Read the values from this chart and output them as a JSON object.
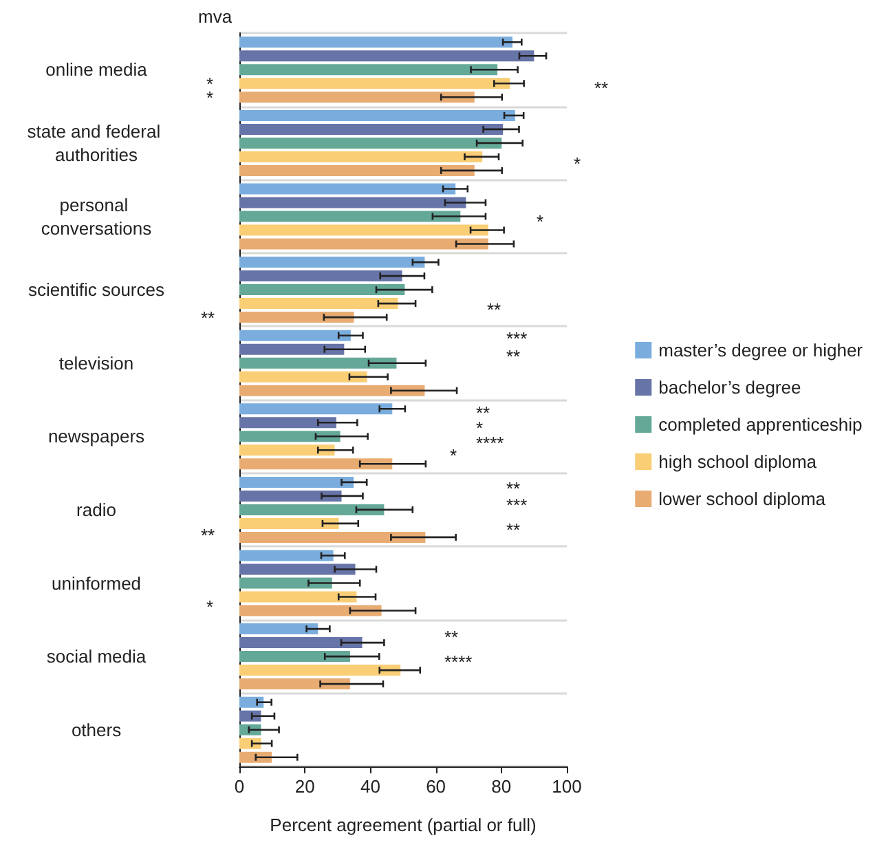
{
  "chart_data": {
    "type": "bar",
    "orientation": "horizontal",
    "xlabel": "Percent agreement (partial or full)",
    "categories": [
      "online media",
      "state and federal authorities",
      "personal conversations",
      "scientific sources",
      "television",
      "newspapers",
      "radio",
      "uninformed",
      "social media",
      "others"
    ],
    "series": [
      {
        "name": "master’s degree or higher",
        "color": "#7aadde",
        "values": [
          83.4,
          84.2,
          66,
          56.6,
          34,
          46.7,
          34.9,
          28.7,
          24,
          7.4
        ],
        "errors": [
          [
            80.5,
            86.2
          ],
          [
            80.9,
            86.8
          ],
          [
            62.2,
            69.7
          ],
          [
            52.9,
            60.8
          ],
          [
            30.3,
            37.7
          ],
          [
            42.8,
            50.6
          ],
          [
            31.2,
            38.9
          ],
          [
            25,
            32.2
          ],
          [
            20.5,
            27.6
          ],
          [
            5.4,
            9.8
          ]
        ]
      },
      {
        "name": "bachelor’s degree",
        "color": "#6674a8",
        "values": [
          90,
          80.5,
          69.2,
          49.7,
          32,
          29.6,
          31.2,
          35.4,
          37.5,
          6.6
        ],
        "errors": [
          [
            85.5,
            93.7
          ],
          [
            74.5,
            85.4
          ],
          [
            62.8,
            75.2
          ],
          [
            43,
            56.5
          ],
          [
            26,
            38.4
          ],
          [
            24,
            36
          ],
          [
            25.1,
            37.7
          ],
          [
            29.1,
            41.8
          ],
          [
            31.1,
            44.2
          ],
          [
            3.8,
            10.7
          ]
        ]
      },
      {
        "name": "completed apprenticeship",
        "color": "#64a898",
        "values": [
          78.8,
          80.1,
          67.5,
          50.5,
          48,
          30.8,
          44.2,
          28.3,
          33.8,
          6.6
        ],
        "errors": [
          [
            70.7,
            85
          ],
          [
            72.5,
            86.5
          ],
          [
            59,
            75.2
          ],
          [
            41.8,
            58.9
          ],
          [
            39.5,
            56.9
          ],
          [
            23.3,
            39.2
          ],
          [
            35.7,
            52.9
          ],
          [
            21.1,
            36.8
          ],
          [
            26.1,
            42.7
          ],
          [
            2.9,
            12.1
          ]
        ]
      },
      {
        "name": "high school diploma",
        "color": "#f9ce75",
        "values": [
          82.6,
          74.2,
          76,
          48.4,
          39,
          29.1,
          30.4,
          35.8,
          49.2,
          6.6
        ],
        "errors": [
          [
            77.8,
            86.9
          ],
          [
            68.8,
            79.2
          ],
          [
            70.6,
            80.8
          ],
          [
            42.4,
            53.8
          ],
          [
            33.6,
            45.3
          ],
          [
            24,
            34.7
          ],
          [
            25.4,
            36.3
          ],
          [
            30.3,
            41.6
          ],
          [
            42.8,
            55.2
          ],
          [
            3.8,
            9.9
          ]
        ]
      },
      {
        "name": "lower school diploma",
        "color": "#e8ac72",
        "values": [
          71.8,
          71.8,
          76,
          35,
          56.6,
          46.7,
          56.8,
          43.4,
          33.8,
          9.9
        ],
        "errors": [
          [
            61.6,
            80.2
          ],
          [
            61.6,
            80.2
          ],
          [
            66.2,
            83.8
          ],
          [
            25.8,
            45
          ],
          [
            46.3,
            66.4
          ],
          [
            36.8,
            56.9
          ],
          [
            46.3,
            66.1
          ],
          [
            33.8,
            53.8
          ],
          [
            24.7,
            43.9
          ],
          [
            5,
            17.7
          ]
        ]
      }
    ],
    "xlim": [
      0,
      100
    ],
    "xticks": [
      0,
      20,
      40,
      60,
      80,
      100
    ],
    "grid": "y",
    "legend": "right",
    "annotations": [
      "mva",
      "*",
      "*",
      "**",
      "**",
      "*",
      "**",
      "*",
      "*",
      "**",
      "***",
      "**",
      "**",
      "*",
      "****",
      "*",
      "**",
      "***",
      "**",
      "**",
      "****"
    ]
  }
}
